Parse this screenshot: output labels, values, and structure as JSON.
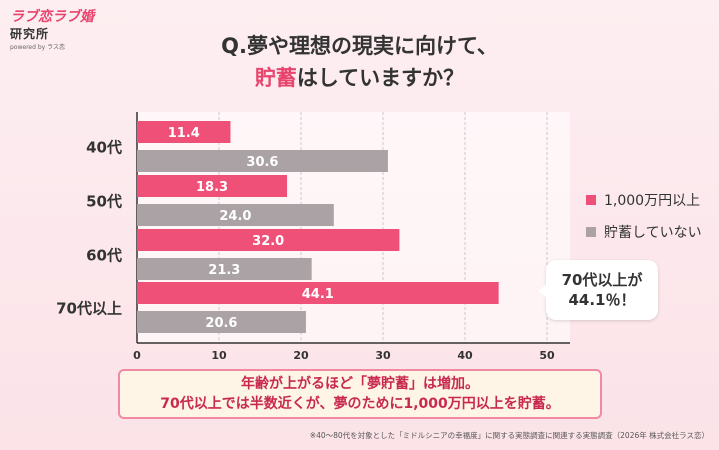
{
  "logo": {
    "line1": "ラブ恋ラブ婚",
    "line2": "研究所",
    "line3": "powered by ラス恋"
  },
  "header": {
    "title_line1": "Q.夢や理想の現実に向けて、",
    "title_line2_highlight": "貯蓄",
    "title_line2_rest": "はしていますか？"
  },
  "chart_data": {
    "type": "bar",
    "orientation": "horizontal",
    "categories": [
      "40代",
      "50代",
      "60代",
      "70代以上"
    ],
    "series": [
      {
        "name": "1,000万円以上",
        "values": [
          11.4,
          18.3,
          32.0,
          44.1
        ],
        "color": "#ef5078"
      },
      {
        "name": "貯蓄していない",
        "values": [
          30.6,
          24.0,
          21.3,
          20.6
        ],
        "color": "#aaa2a4"
      }
    ],
    "value_labels": [
      [
        "11.4",
        "18.3",
        "32.0",
        "44.1"
      ],
      [
        "30.6",
        "24.0",
        "21.3",
        "20.6"
      ]
    ],
    "xticks": [
      "0",
      "10",
      "20",
      "30",
      "40",
      "50"
    ],
    "xlim": [
      0,
      52
    ],
    "grid": true,
    "legend_position": "right"
  },
  "callout": {
    "line1": "70代以上が",
    "line2": "44.1％！"
  },
  "summary": {
    "line1": "年齢が上がるほど「夢貯蓄」は増加。",
    "line2": "70代以上では半数近くが、夢のために1,000万円以上を貯蓄。"
  },
  "footnote": "※40～80代を対象とした「ミドルシニアの幸福度」に関する実態調査に関連する実態調査（2026年 株式会社ラス恋）"
}
